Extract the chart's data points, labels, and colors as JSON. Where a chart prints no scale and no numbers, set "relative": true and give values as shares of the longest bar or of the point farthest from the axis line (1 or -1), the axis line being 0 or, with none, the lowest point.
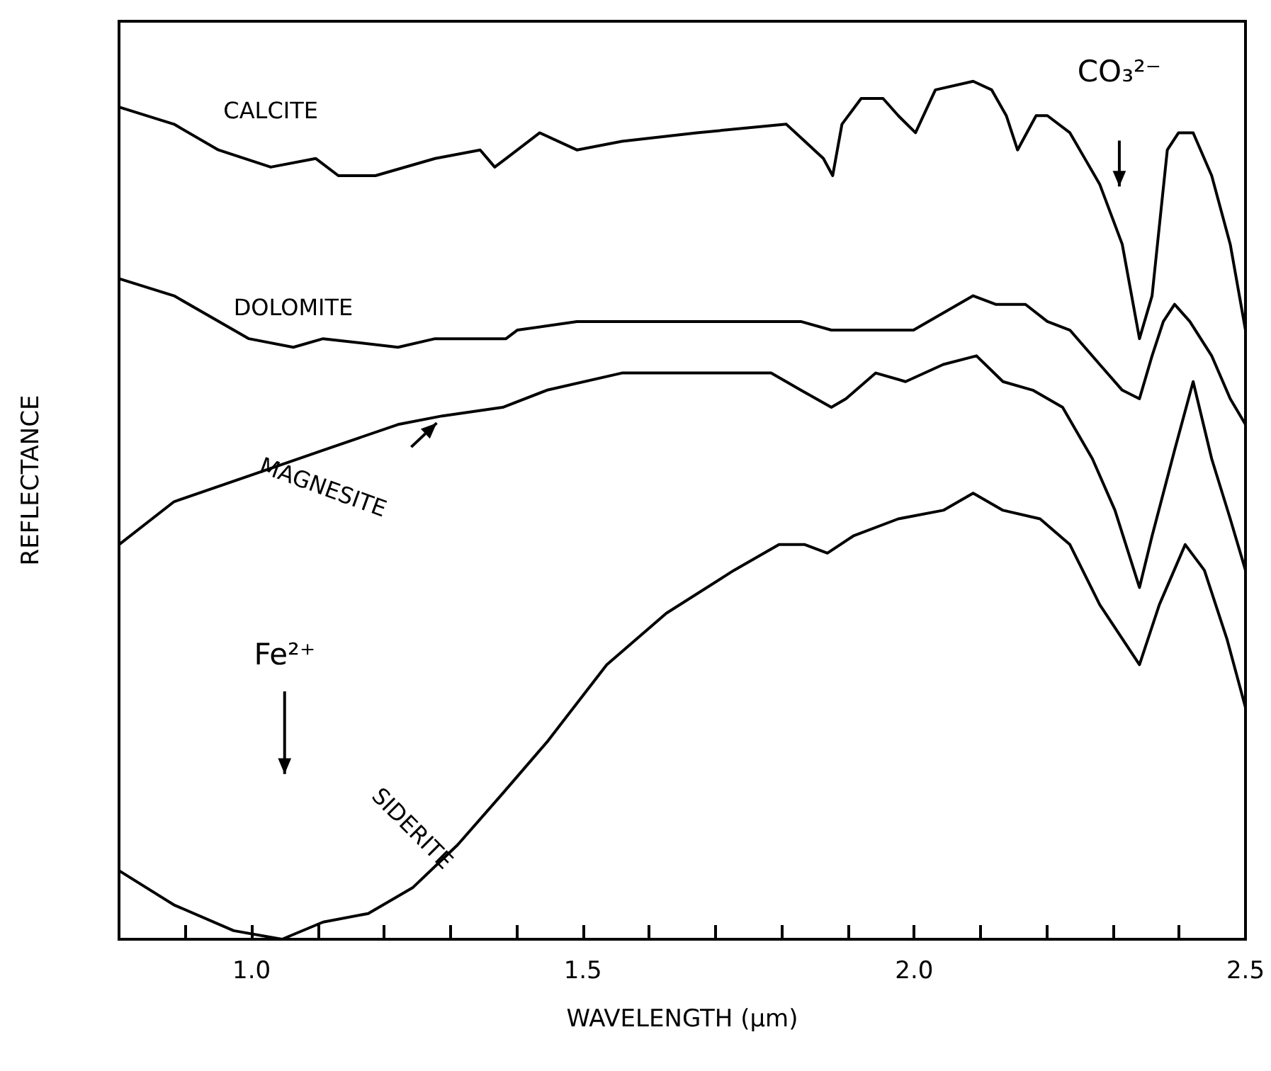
{
  "chart_data": {
    "type": "line",
    "relative": true,
    "xlabel": "WAVELENGTH (µm)",
    "ylabel": "REFLECTANCE",
    "xlim": [
      0.8,
      2.5
    ],
    "xticks": [
      {
        "value": 0.9,
        "label": null
      },
      {
        "value": 1,
        "label": "1.0"
      },
      {
        "value": 1.1,
        "label": null
      },
      {
        "value": 1.2,
        "label": null
      },
      {
        "value": 1.3,
        "label": null
      },
      {
        "value": 1.4,
        "label": null
      },
      {
        "value": 1.5,
        "label": "1.5"
      },
      {
        "value": 1.6,
        "label": null
      },
      {
        "value": 1.7,
        "label": null
      },
      {
        "value": 1.8,
        "label": null
      },
      {
        "value": 1.9,
        "label": null
      },
      {
        "value": 2,
        "label": "2.0"
      },
      {
        "value": 2.1,
        "label": null
      },
      {
        "value": 2.2,
        "label": null
      },
      {
        "value": 2.3,
        "label": null
      },
      {
        "value": 2.4,
        "label": null
      },
      {
        "value": 2.5,
        "label": "2.5"
      }
    ],
    "grid": false,
    "legend": false,
    "marker": "none",
    "line_style": "solid",
    "annotations": [
      "CO₃²⁻",
      "Fe²⁺"
    ],
    "series": [
      {
        "name": "CALCITE",
        "color": "#000000",
        "x": [
          0.8,
          0.883,
          0.95,
          1.029,
          1.097,
          1.131,
          1.187,
          1.277,
          1.345,
          1.367,
          1.384,
          1.435,
          1.491,
          1.559,
          1.672,
          1.807,
          1.835,
          1.863,
          1.877,
          1.891,
          1.92,
          1.953,
          1.976,
          2.002,
          2.032,
          2.089,
          2.117,
          2.139,
          2.156,
          2.184,
          2.201,
          2.235,
          2.28,
          2.314,
          2.34,
          2.359,
          2.382,
          2.399,
          2.421,
          2.449,
          2.477,
          2.5
        ],
        "values": [
          0.97,
          0.95,
          0.92,
          0.9,
          0.91,
          0.89,
          0.89,
          0.91,
          0.92,
          0.9,
          0.91,
          0.94,
          0.92,
          0.93,
          0.94,
          0.95,
          0.93,
          0.91,
          0.89,
          0.95,
          0.98,
          0.98,
          0.96,
          0.94,
          0.99,
          1,
          0.99,
          0.96,
          0.92,
          0.96,
          0.96,
          0.94,
          0.88,
          0.81,
          0.7,
          0.75,
          0.92,
          0.94,
          0.94,
          0.89,
          0.81,
          0.71
        ]
      },
      {
        "name": "DOLOMITE",
        "color": "#000000",
        "x": [
          0.8,
          0.883,
          0.996,
          1.063,
          1.108,
          1.221,
          1.277,
          1.367,
          1.384,
          1.401,
          1.491,
          1.615,
          1.784,
          1.829,
          1.875,
          1.908,
          1.942,
          1.999,
          2.044,
          2.089,
          2.123,
          2.168,
          2.201,
          2.235,
          2.28,
          2.314,
          2.34,
          2.359,
          2.376,
          2.393,
          2.416,
          2.449,
          2.477,
          2.5
        ],
        "values": [
          0.77,
          0.75,
          0.7,
          0.69,
          0.7,
          0.69,
          0.7,
          0.7,
          0.7,
          0.71,
          0.72,
          0.72,
          0.72,
          0.72,
          0.71,
          0.71,
          0.71,
          0.71,
          0.73,
          0.75,
          0.74,
          0.74,
          0.72,
          0.71,
          0.67,
          0.64,
          0.63,
          0.68,
          0.72,
          0.74,
          0.72,
          0.68,
          0.63,
          0.6
        ]
      },
      {
        "name": "MAGNESITE",
        "color": "#000000",
        "x": [
          0.8,
          0.883,
          0.996,
          1.108,
          1.221,
          1.288,
          1.379,
          1.446,
          1.559,
          1.672,
          1.784,
          1.829,
          1.875,
          1.897,
          1.942,
          1.987,
          2.044,
          2.094,
          2.134,
          2.179,
          2.224,
          2.269,
          2.303,
          2.34,
          2.359,
          2.393,
          2.421,
          2.449,
          2.477,
          2.5
        ],
        "values": [
          0.46,
          0.51,
          0.54,
          0.57,
          0.6,
          0.61,
          0.62,
          0.64,
          0.66,
          0.66,
          0.66,
          0.64,
          0.62,
          0.63,
          0.66,
          0.65,
          0.67,
          0.68,
          0.65,
          0.64,
          0.62,
          0.56,
          0.5,
          0.41,
          0.47,
          0.57,
          0.65,
          0.56,
          0.49,
          0.43
        ]
      },
      {
        "name": "SIDERITE",
        "color": "#000000",
        "x": [
          0.8,
          0.883,
          0.973,
          1.046,
          1.108,
          1.176,
          1.243,
          1.311,
          1.379,
          1.446,
          1.536,
          1.626,
          1.728,
          1.796,
          1.835,
          1.869,
          1.908,
          1.976,
          2.044,
          2.089,
          2.134,
          2.19,
          2.235,
          2.28,
          2.34,
          2.37,
          2.409,
          2.438,
          2.472,
          2.5
        ],
        "values": [
          0.08,
          0.04,
          0.01,
          0,
          0.02,
          0.03,
          0.06,
          0.11,
          0.17,
          0.23,
          0.32,
          0.38,
          0.43,
          0.46,
          0.46,
          0.45,
          0.47,
          0.49,
          0.5,
          0.52,
          0.5,
          0.49,
          0.46,
          0.39,
          0.32,
          0.39,
          0.46,
          0.43,
          0.35,
          0.27
        ]
      }
    ]
  }
}
